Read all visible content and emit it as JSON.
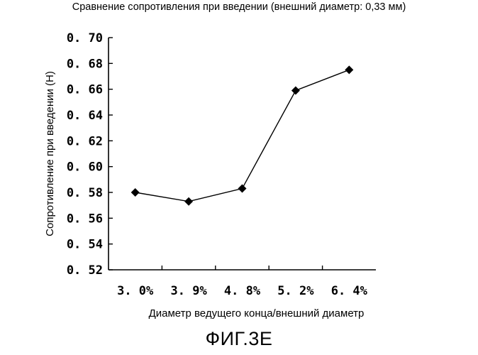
{
  "title": "Сравнение сопротивления при введении (внешний диаметр: 0,33 мм)",
  "figure_caption": "ФИГ.3E",
  "chart_data": {
    "type": "line",
    "categories": [
      "3. 0%",
      "3. 9%",
      "4. 8%",
      "5. 2%",
      "6. 4%"
    ],
    "values": [
      0.58,
      0.573,
      0.583,
      0.659,
      0.675
    ],
    "xlabel": "Диаметр ведущего конца/внешний диаметр",
    "ylabel": "Сопротивление при введении (Н)",
    "ylim": [
      0.52,
      0.7
    ],
    "yticks": [
      "0. 52",
      "0. 54",
      "0. 56",
      "0. 58",
      "0. 60",
      "0. 62",
      "0. 64",
      "0. 66",
      "0. 68",
      "0. 70"
    ],
    "marker": "diamond",
    "line_color": "#000000",
    "grid": false,
    "legend": "none"
  }
}
